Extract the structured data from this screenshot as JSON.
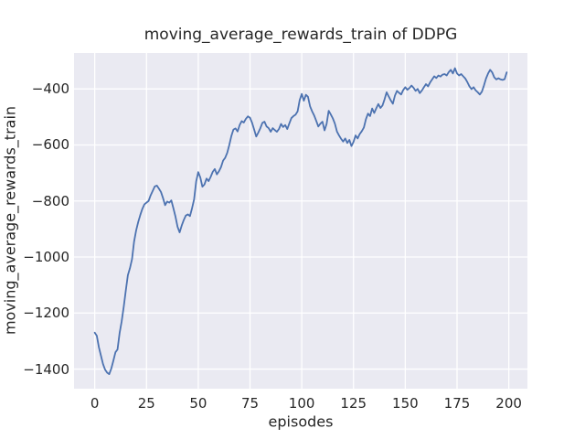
{
  "figure": {
    "title": "moving_average_rewards_train of DDPG",
    "xlabel": "episodes",
    "ylabel": "moving_average_rewards_train",
    "x_tick_labels": [
      "0",
      "25",
      "50",
      "75",
      "100",
      "125",
      "150",
      "175",
      "200"
    ],
    "y_tick_labels": [
      "−400",
      "−600",
      "−800",
      "−1000",
      "−1200",
      "−1400"
    ]
  },
  "chart_data": {
    "type": "line",
    "title": "moving_average_rewards_train of DDPG",
    "xlabel": "episodes",
    "ylabel": "moving_average_rewards_train",
    "style": "seaborn-darkgrid",
    "grid": true,
    "legend": "none",
    "plot_bg": "#EAEAF2",
    "grid_color": "#FFFFFF",
    "line_color": "#4C72B0",
    "text_color": "#262626",
    "x_ticks": [
      0,
      25,
      50,
      75,
      100,
      125,
      150,
      175,
      200
    ],
    "y_ticks": [
      -400,
      -600,
      -800,
      -1000,
      -1200,
      -1400
    ],
    "xlim": [
      -10,
      209
    ],
    "ylim": [
      -1470,
      -272
    ],
    "series": [
      {
        "name": "DDPG",
        "x_start": 0,
        "x_step": 1,
        "n_points": 200,
        "values": [
          -1270,
          -1281,
          -1322,
          -1352,
          -1382,
          -1402,
          -1413,
          -1418,
          -1398,
          -1370,
          -1340,
          -1330,
          -1272,
          -1230,
          -1178,
          -1120,
          -1065,
          -1040,
          -1008,
          -945,
          -905,
          -875,
          -850,
          -828,
          -812,
          -806,
          -800,
          -780,
          -764,
          -748,
          -745,
          -756,
          -768,
          -790,
          -815,
          -802,
          -806,
          -798,
          -826,
          -856,
          -892,
          -912,
          -888,
          -868,
          -852,
          -848,
          -854,
          -826,
          -794,
          -730,
          -697,
          -716,
          -749,
          -741,
          -720,
          -729,
          -714,
          -696,
          -686,
          -705,
          -694,
          -679,
          -656,
          -646,
          -628,
          -600,
          -568,
          -545,
          -541,
          -552,
          -529,
          -515,
          -520,
          -507,
          -498,
          -503,
          -521,
          -545,
          -570,
          -556,
          -540,
          -521,
          -517,
          -534,
          -540,
          -553,
          -540,
          -547,
          -553,
          -543,
          -525,
          -536,
          -529,
          -543,
          -523,
          -504,
          -497,
          -492,
          -480,
          -440,
          -418,
          -442,
          -421,
          -428,
          -462,
          -480,
          -495,
          -514,
          -534,
          -524,
          -517,
          -548,
          -525,
          -478,
          -491,
          -505,
          -524,
          -552,
          -566,
          -578,
          -588,
          -577,
          -593,
          -582,
          -604,
          -589,
          -566,
          -577,
          -561,
          -551,
          -538,
          -508,
          -488,
          -497,
          -470,
          -486,
          -469,
          -454,
          -468,
          -459,
          -437,
          -412,
          -427,
          -441,
          -453,
          -424,
          -407,
          -414,
          -420,
          -404,
          -394,
          -403,
          -397,
          -388,
          -396,
          -407,
          -400,
          -415,
          -406,
          -394,
          -383,
          -391,
          -377,
          -366,
          -355,
          -361,
          -352,
          -356,
          -349,
          -347,
          -352,
          -340,
          -332,
          -345,
          -326,
          -345,
          -352,
          -347,
          -355,
          -363,
          -376,
          -391,
          -401,
          -394,
          -405,
          -412,
          -420,
          -410,
          -388,
          -363,
          -345,
          -332,
          -341,
          -359,
          -366,
          -362,
          -366,
          -368,
          -365,
          -341
        ]
      }
    ]
  }
}
